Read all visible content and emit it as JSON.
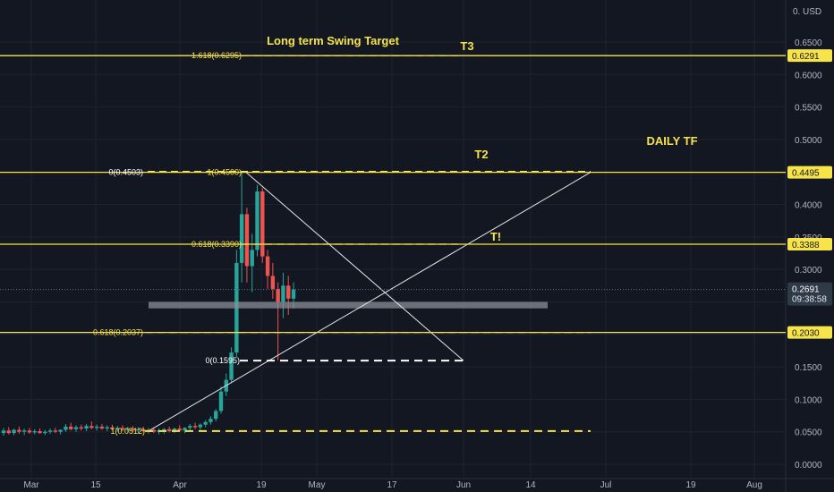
{
  "colors": {
    "background": "#131722",
    "grid": "#1f2331",
    "axis_text": "#b2b5be",
    "level": "#f7e34a",
    "up": "#26a69a",
    "down": "#ef5350",
    "trendline": "#e6e6e6",
    "zone": "#8a8d96",
    "current_tag": "#2f3a47"
  },
  "price_axis": {
    "currency": "USD",
    "top_label": "0.",
    "ticks": [
      0.65,
      0.6,
      0.55,
      0.5,
      0.45,
      0.4,
      0.35,
      0.3,
      0.25,
      0.2,
      0.15,
      0.1,
      0.05,
      0.0
    ],
    "tick_labels": [
      "0.6500",
      "0.6000",
      "0.5500",
      "0.5000",
      "0.4500",
      "0.4000",
      "0.3500",
      "0.3000",
      "0.2500",
      "0.2000",
      "0.1500",
      "0.1000",
      "0.0500",
      "0.0000"
    ]
  },
  "time_axis": {
    "labels": [
      "Mar",
      "15",
      "Apr",
      "19",
      "May",
      "17",
      "Jun",
      "14",
      "Jul",
      "19",
      "Aug"
    ]
  },
  "current_price": {
    "label": "0.2691",
    "countdown": "09:38:58",
    "value": 0.2691
  },
  "annotations": {
    "title": "Long term Swing Target",
    "t3": "T3",
    "t2": "T2",
    "t1": "T!",
    "timeframe": "DAILY TF"
  },
  "chart_data": {
    "type": "candlestick",
    "ylim": [
      -0.01,
      0.69
    ],
    "horizontal_levels": [
      {
        "value": 0.6291,
        "tag": "0.6291",
        "fib_label": "1.618(0.6295)"
      },
      {
        "value": 0.4495,
        "tag": "0.4495",
        "fib_labels": [
          "0(0.4503)",
          "1(0.4500)"
        ]
      },
      {
        "value": 0.3388,
        "tag": "0.3388",
        "fib_label": "0.618(0.3390)"
      },
      {
        "value": 0.203,
        "tag": "0.2030",
        "fib_label": "0.618(0.2037)"
      }
    ],
    "dashed_levels": [
      {
        "value": 0.1595,
        "label": "0(0.1595)",
        "color": "white"
      },
      {
        "value": 0.0512,
        "label": "1(0.0512)",
        "color": "yellow"
      }
    ],
    "support_zone": {
      "low": 0.24,
      "high": 0.25
    },
    "candles": [
      {
        "o": 0.048,
        "h": 0.056,
        "l": 0.044,
        "c": 0.052
      },
      {
        "o": 0.052,
        "h": 0.057,
        "l": 0.046,
        "c": 0.048
      },
      {
        "o": 0.048,
        "h": 0.055,
        "l": 0.045,
        "c": 0.053
      },
      {
        "o": 0.053,
        "h": 0.058,
        "l": 0.047,
        "c": 0.05
      },
      {
        "o": 0.05,
        "h": 0.055,
        "l": 0.045,
        "c": 0.052
      },
      {
        "o": 0.052,
        "h": 0.056,
        "l": 0.047,
        "c": 0.049
      },
      {
        "o": 0.049,
        "h": 0.054,
        "l": 0.046,
        "c": 0.051
      },
      {
        "o": 0.051,
        "h": 0.055,
        "l": 0.047,
        "c": 0.048
      },
      {
        "o": 0.048,
        "h": 0.053,
        "l": 0.045,
        "c": 0.05
      },
      {
        "o": 0.05,
        "h": 0.055,
        "l": 0.047,
        "c": 0.052
      },
      {
        "o": 0.052,
        "h": 0.056,
        "l": 0.048,
        "c": 0.05
      },
      {
        "o": 0.05,
        "h": 0.054,
        "l": 0.046,
        "c": 0.053
      },
      {
        "o": 0.053,
        "h": 0.062,
        "l": 0.05,
        "c": 0.058
      },
      {
        "o": 0.058,
        "h": 0.064,
        "l": 0.052,
        "c": 0.054
      },
      {
        "o": 0.054,
        "h": 0.06,
        "l": 0.05,
        "c": 0.057
      },
      {
        "o": 0.057,
        "h": 0.061,
        "l": 0.052,
        "c": 0.055
      },
      {
        "o": 0.055,
        "h": 0.062,
        "l": 0.051,
        "c": 0.059
      },
      {
        "o": 0.059,
        "h": 0.066,
        "l": 0.054,
        "c": 0.056
      },
      {
        "o": 0.056,
        "h": 0.061,
        "l": 0.052,
        "c": 0.058
      },
      {
        "o": 0.058,
        "h": 0.062,
        "l": 0.053,
        "c": 0.055
      },
      {
        "o": 0.055,
        "h": 0.06,
        "l": 0.051,
        "c": 0.057
      },
      {
        "o": 0.057,
        "h": 0.061,
        "l": 0.052,
        "c": 0.054
      },
      {
        "o": 0.054,
        "h": 0.059,
        "l": 0.05,
        "c": 0.056
      },
      {
        "o": 0.056,
        "h": 0.06,
        "l": 0.051,
        "c": 0.053
      },
      {
        "o": 0.053,
        "h": 0.058,
        "l": 0.049,
        "c": 0.055
      },
      {
        "o": 0.055,
        "h": 0.059,
        "l": 0.05,
        "c": 0.052
      },
      {
        "o": 0.052,
        "h": 0.057,
        "l": 0.048,
        "c": 0.054
      },
      {
        "o": 0.054,
        "h": 0.058,
        "l": 0.049,
        "c": 0.051
      },
      {
        "o": 0.051,
        "h": 0.056,
        "l": 0.047,
        "c": 0.053
      },
      {
        "o": 0.053,
        "h": 0.057,
        "l": 0.048,
        "c": 0.05
      },
      {
        "o": 0.05,
        "h": 0.055,
        "l": 0.046,
        "c": 0.052
      },
      {
        "o": 0.052,
        "h": 0.056,
        "l": 0.047,
        "c": 0.054
      },
      {
        "o": 0.054,
        "h": 0.058,
        "l": 0.049,
        "c": 0.051
      },
      {
        "o": 0.051,
        "h": 0.056,
        "l": 0.048,
        "c": 0.055
      },
      {
        "o": 0.055,
        "h": 0.06,
        "l": 0.05,
        "c": 0.052
      },
      {
        "o": 0.052,
        "h": 0.057,
        "l": 0.048,
        "c": 0.056
      },
      {
        "o": 0.056,
        "h": 0.062,
        "l": 0.052,
        "c": 0.059
      },
      {
        "o": 0.059,
        "h": 0.064,
        "l": 0.054,
        "c": 0.057
      },
      {
        "o": 0.057,
        "h": 0.063,
        "l": 0.053,
        "c": 0.061
      },
      {
        "o": 0.061,
        "h": 0.068,
        "l": 0.057,
        "c": 0.065
      },
      {
        "o": 0.065,
        "h": 0.074,
        "l": 0.061,
        "c": 0.07
      },
      {
        "o": 0.07,
        "h": 0.085,
        "l": 0.066,
        "c": 0.082
      },
      {
        "o": 0.082,
        "h": 0.12,
        "l": 0.078,
        "c": 0.112
      },
      {
        "o": 0.112,
        "h": 0.14,
        "l": 0.105,
        "c": 0.13
      },
      {
        "o": 0.13,
        "h": 0.18,
        "l": 0.125,
        "c": 0.172
      },
      {
        "o": 0.172,
        "h": 0.33,
        "l": 0.165,
        "c": 0.31
      },
      {
        "o": 0.31,
        "h": 0.45,
        "l": 0.28,
        "c": 0.385
      },
      {
        "o": 0.385,
        "h": 0.395,
        "l": 0.28,
        "c": 0.305
      },
      {
        "o": 0.305,
        "h": 0.355,
        "l": 0.265,
        "c": 0.33
      },
      {
        "o": 0.33,
        "h": 0.43,
        "l": 0.32,
        "c": 0.42
      },
      {
        "o": 0.42,
        "h": 0.425,
        "l": 0.31,
        "c": 0.32
      },
      {
        "o": 0.32,
        "h": 0.33,
        "l": 0.27,
        "c": 0.29
      },
      {
        "o": 0.29,
        "h": 0.31,
        "l": 0.255,
        "c": 0.27
      },
      {
        "o": 0.27,
        "h": 0.28,
        "l": 0.16,
        "c": 0.25
      },
      {
        "o": 0.25,
        "h": 0.295,
        "l": 0.225,
        "c": 0.275
      },
      {
        "o": 0.275,
        "h": 0.29,
        "l": 0.23,
        "c": 0.255
      },
      {
        "o": 0.255,
        "h": 0.28,
        "l": 0.24,
        "c": 0.2691
      }
    ]
  }
}
